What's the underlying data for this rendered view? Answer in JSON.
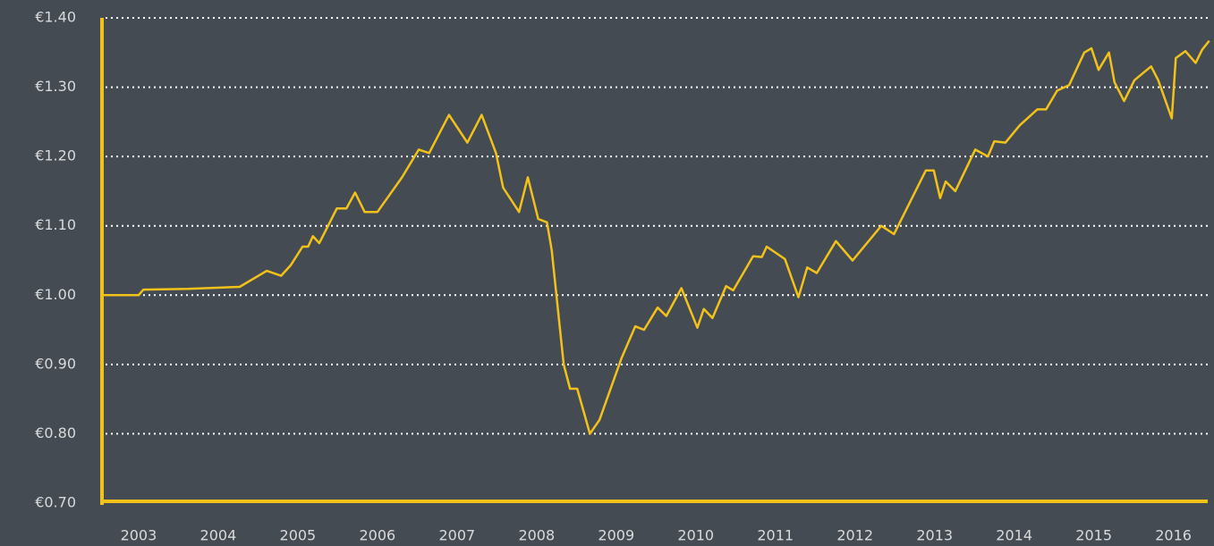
{
  "chart_data": {
    "type": "line",
    "color": "#f2c21b",
    "grid": true,
    "x": [
      2003.04,
      2003.5,
      2003.56,
      2004.12,
      2004.77,
      2005.11,
      2005.29,
      2005.41,
      2005.56,
      2005.63,
      2005.69,
      2005.77,
      2005.99,
      2006.11,
      2006.22,
      2006.34,
      2006.5,
      2006.81,
      2007.02,
      2007.15,
      2007.4,
      2007.63,
      2007.81,
      2007.99,
      2008.08,
      2008.28,
      2008.39,
      2008.52,
      2008.63,
      2008.69,
      2008.84,
      2008.92,
      2009.01,
      2009.17,
      2009.29,
      2009.57,
      2009.74,
      2009.85,
      2010.02,
      2010.13,
      2010.32,
      2010.52,
      2010.6,
      2010.71,
      2010.88,
      2010.97,
      2011.22,
      2011.33,
      2011.39,
      2011.62,
      2011.79,
      2011.9,
      2012.02,
      2012.26,
      2012.47,
      2012.83,
      2012.99,
      2013.39,
      2013.49,
      2013.57,
      2013.64,
      2013.76,
      2014.01,
      2014.17,
      2014.25,
      2014.39,
      2014.57,
      2014.79,
      2014.9,
      2015.04,
      2015.19,
      2015.38,
      2015.47,
      2015.56,
      2015.69,
      2015.76,
      2015.88,
      2016.01,
      2016.22,
      2016.31,
      2016.48,
      2016.53,
      2016.65,
      2016.78,
      2016.86,
      2016.95
    ],
    "values": [
      1.0,
      1.0,
      1.008,
      1.009,
      1.012,
      1.035,
      1.028,
      1.043,
      1.07,
      1.07,
      1.085,
      1.075,
      1.125,
      1.125,
      1.148,
      1.12,
      1.12,
      1.17,
      1.21,
      1.205,
      1.26,
      1.22,
      1.26,
      1.205,
      1.155,
      1.12,
      1.17,
      1.11,
      1.105,
      1.065,
      0.9,
      0.865,
      0.865,
      0.8,
      0.82,
      0.91,
      0.955,
      0.95,
      0.982,
      0.97,
      1.01,
      0.953,
      0.98,
      0.967,
      1.013,
      1.007,
      1.056,
      1.055,
      1.07,
      1.052,
      0.997,
      1.04,
      1.032,
      1.078,
      1.05,
      1.1,
      1.088,
      1.18,
      1.18,
      1.14,
      1.164,
      1.15,
      1.21,
      1.2,
      1.222,
      1.22,
      1.245,
      1.268,
      1.268,
      1.295,
      1.303,
      1.35,
      1.356,
      1.325,
      1.35,
      1.307,
      1.28,
      1.31,
      1.33,
      1.31,
      1.255,
      1.342,
      1.352,
      1.335,
      1.354,
      1.367
    ],
    "xlim": [
      2003.04,
      2017.01
    ],
    "xticks": [
      {
        "value": 2003.5,
        "label": "2003"
      },
      {
        "value": 2004.5,
        "label": "2004"
      },
      {
        "value": 2005.5,
        "label": "2005"
      },
      {
        "value": 2006.5,
        "label": "2006"
      },
      {
        "value": 2007.5,
        "label": "2007"
      },
      {
        "value": 2008.5,
        "label": "2008"
      },
      {
        "value": 2009.5,
        "label": "2009"
      },
      {
        "value": 2010.5,
        "label": "2010"
      },
      {
        "value": 2011.5,
        "label": "2011"
      },
      {
        "value": 2012.5,
        "label": "2012"
      },
      {
        "value": 2013.5,
        "label": "2013"
      },
      {
        "value": 2014.5,
        "label": "2014"
      },
      {
        "value": 2015.5,
        "label": "2015"
      },
      {
        "value": 2016.5,
        "label": "2016"
      }
    ],
    "ylim": [
      0.7,
      1.4
    ],
    "yticks": [
      {
        "value": 0.7,
        "label": "€0.70"
      },
      {
        "value": 0.8,
        "label": "€0.80"
      },
      {
        "value": 0.9,
        "label": "€0.90"
      },
      {
        "value": 1.0,
        "label": "€1.00"
      },
      {
        "value": 1.1,
        "label": "€1.10"
      },
      {
        "value": 1.2,
        "label": "€1.20"
      },
      {
        "value": 1.3,
        "label": "€1.30"
      },
      {
        "value": 1.4,
        "label": "€1.40"
      }
    ]
  }
}
